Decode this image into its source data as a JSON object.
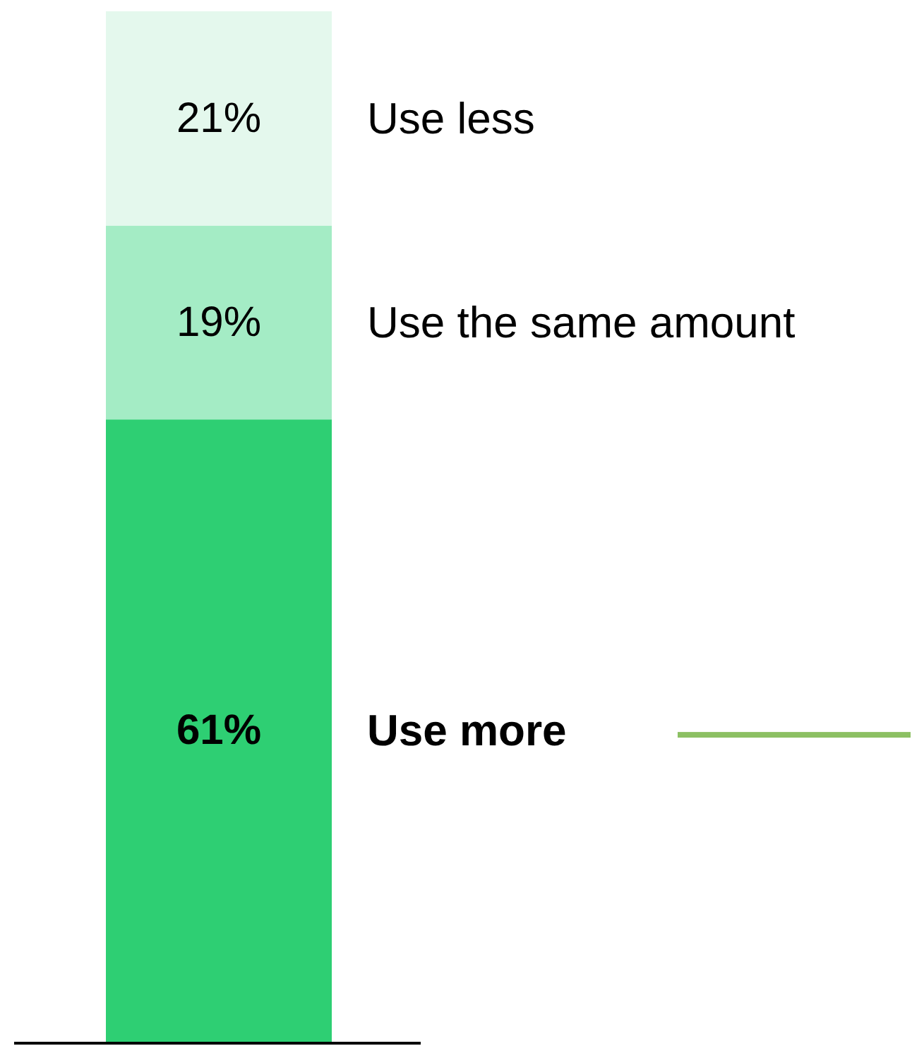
{
  "chart_data": {
    "type": "bar",
    "stacked": true,
    "categories": [
      null
    ],
    "series": [
      {
        "name": "Use more",
        "color": "#2ecf73",
        "values": [
          61
        ],
        "value_labels": [
          "61%"
        ]
      },
      {
        "name": "Use the same amount",
        "color": "#a4ecc5",
        "values": [
          19
        ],
        "value_labels": [
          "19%"
        ]
      },
      {
        "name": "Use less",
        "color": "#e4f8ed",
        "values": [
          21
        ],
        "value_labels": [
          "21%"
        ]
      }
    ]
  }
}
